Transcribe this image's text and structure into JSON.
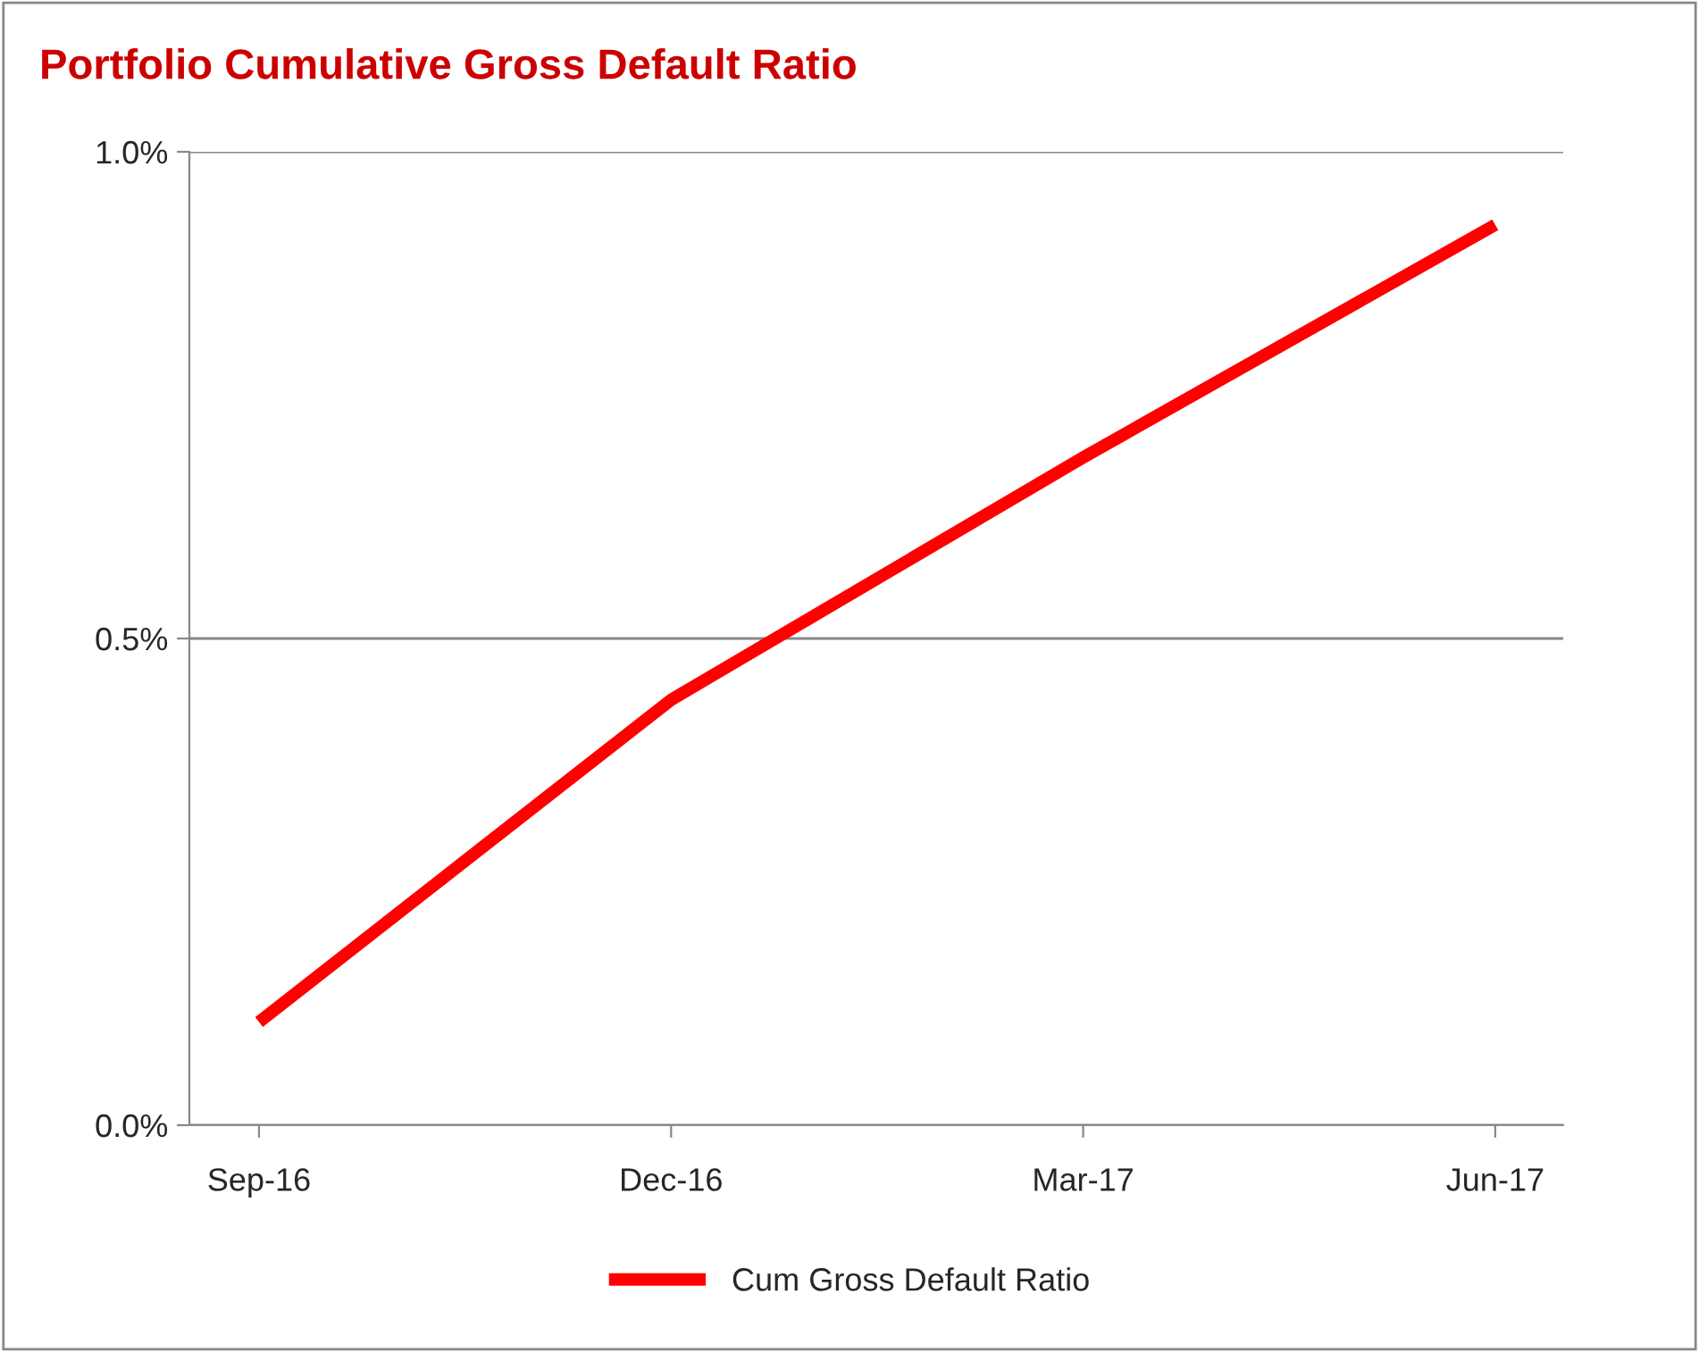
{
  "chart_data": {
    "type": "line",
    "title": "Portfolio Cumulative Gross Default Ratio",
    "categories": [
      "Sep-16",
      "Dec-16",
      "Mar-17",
      "Jun-17"
    ],
    "series": [
      {
        "name": "Cum Gross Default Ratio",
        "color": "#ff0000",
        "values": [
          0.106,
          0.437,
          0.686,
          0.925
        ]
      }
    ],
    "ylim": [
      0,
      1
    ],
    "yticks": [
      {
        "value": 0,
        "label": "0.0%"
      },
      {
        "value": 0.5,
        "label": "0.5%"
      },
      {
        "value": 1,
        "label": "1.0%"
      }
    ],
    "grid": "y",
    "legend": "bottom",
    "marker": "none",
    "line_style": "solid"
  }
}
